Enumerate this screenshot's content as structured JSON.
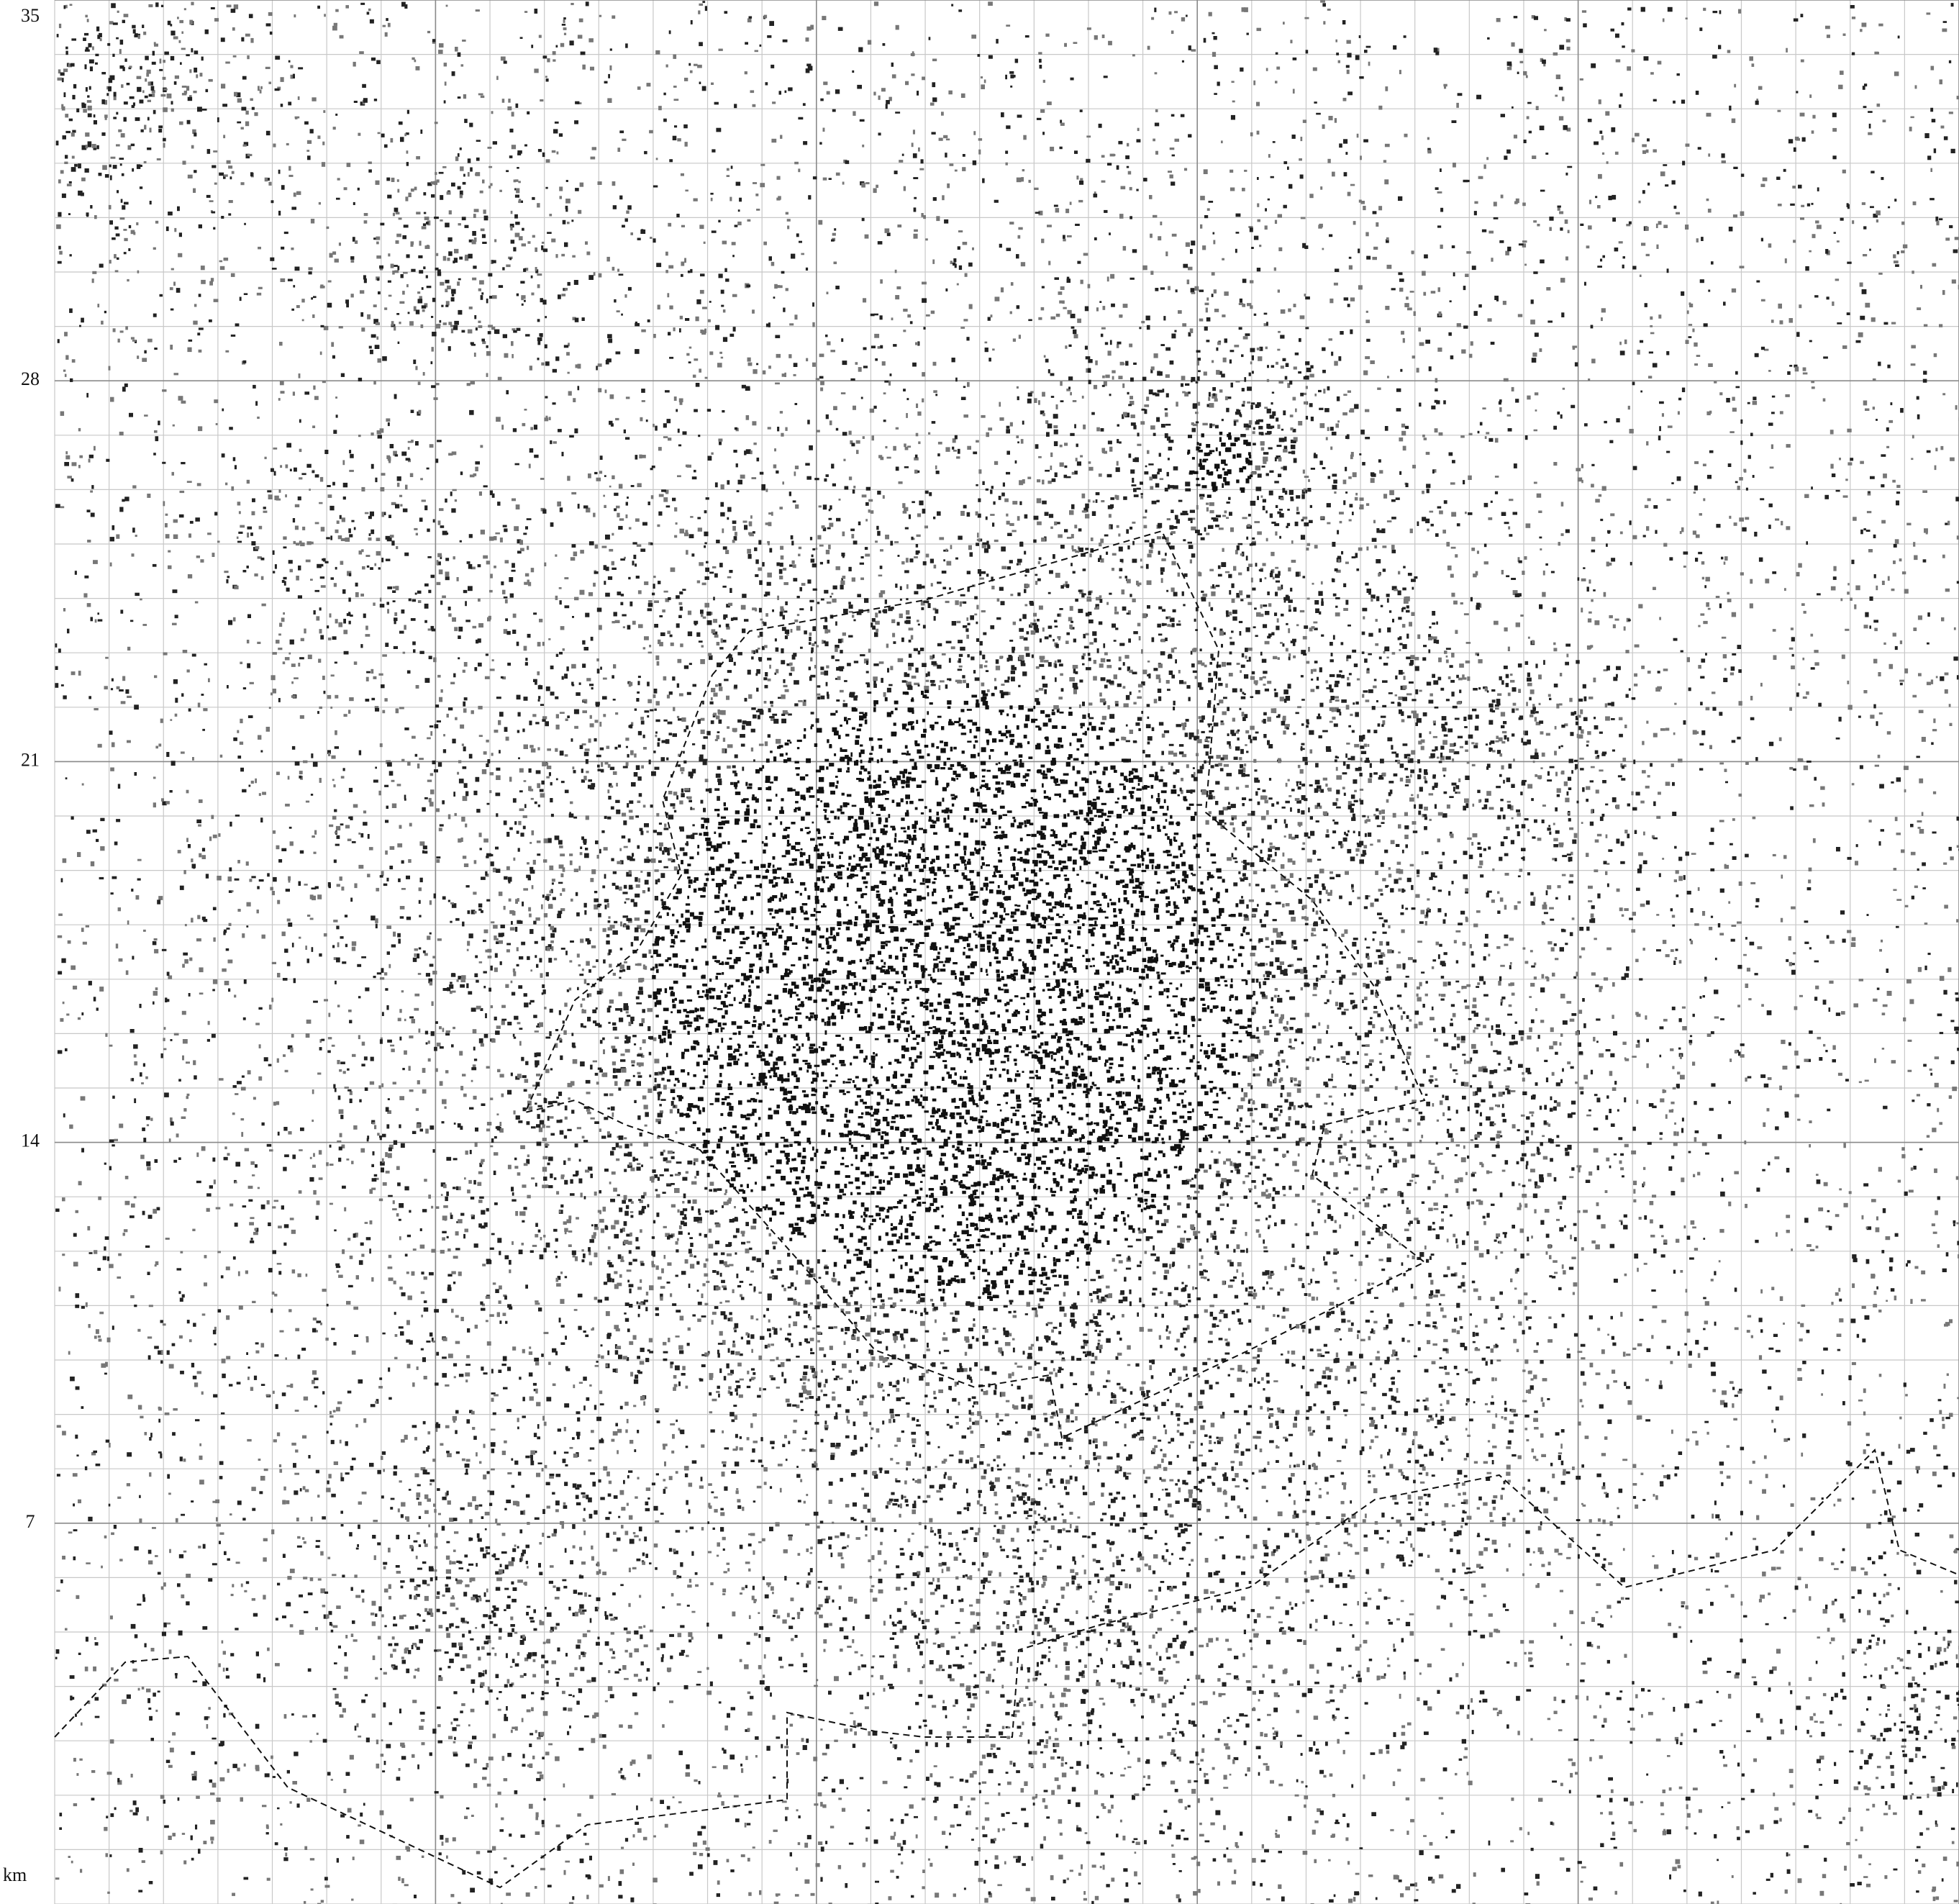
{
  "map": {
    "xlim": [
      0,
      35
    ],
    "ylim": [
      0,
      35
    ],
    "yticks": [
      7,
      14,
      21,
      28,
      35
    ],
    "unit": "km"
  }
}
